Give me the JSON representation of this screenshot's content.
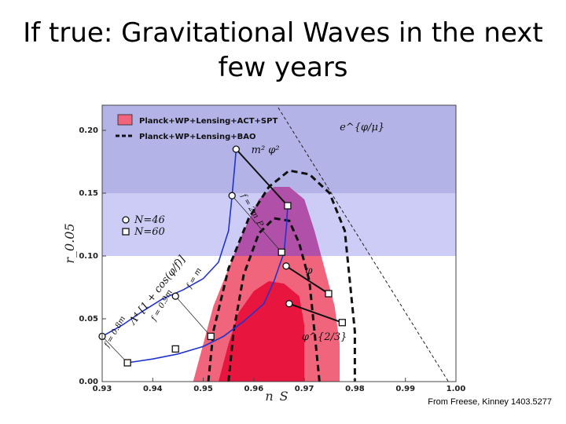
{
  "slide": {
    "title_line1": "If true: Gravitational Waves in the next",
    "title_line2": "few years",
    "credit": "From Freese, Kinney 1403.5277"
  },
  "chart_data": {
    "type": "scatter",
    "xlabel": "n_S",
    "ylabel": "r_0.05",
    "xlim": [
      0.93,
      1.0
    ],
    "ylim": [
      0.0,
      0.22
    ],
    "x_ticks": [
      "0.93",
      "0.94",
      "0.95",
      "0.96",
      "0.97",
      "0.98",
      "0.99",
      "1.00"
    ],
    "y_ticks": [
      "0.00",
      "0.05",
      "0.10",
      "0.15",
      "0.20"
    ],
    "bands": [
      {
        "y0": 0.15,
        "y1": 0.22,
        "color": "#b3b3e8"
      },
      {
        "y0": 0.1,
        "y1": 0.15,
        "color": "#ccccf6"
      }
    ],
    "legend": [
      {
        "label": "Planck+WP+Lensing+ACT+SPT",
        "kind": "fill",
        "color": "#f0647c"
      },
      {
        "label": "Planck+WP+Lensing+BAO",
        "kind": "dashed",
        "color": "#111111"
      }
    ],
    "legend2": [
      {
        "label": "N=46",
        "marker": "circle"
      },
      {
        "label": "N=60",
        "marker": "square"
      }
    ],
    "contour_outer": [
      [
        0.948,
        0.0
      ],
      [
        0.95,
        0.03
      ],
      [
        0.952,
        0.06
      ],
      [
        0.955,
        0.09
      ],
      [
        0.958,
        0.12
      ],
      [
        0.961,
        0.145
      ],
      [
        0.964,
        0.155
      ],
      [
        0.967,
        0.155
      ],
      [
        0.97,
        0.145
      ],
      [
        0.972,
        0.12
      ],
      [
        0.974,
        0.09
      ],
      [
        0.976,
        0.06
      ],
      [
        0.977,
        0.03
      ],
      [
        0.977,
        0.0
      ]
    ],
    "contour_inner": [
      [
        0.953,
        0.0
      ],
      [
        0.955,
        0.03
      ],
      [
        0.957,
        0.055
      ],
      [
        0.96,
        0.072
      ],
      [
        0.963,
        0.08
      ],
      [
        0.966,
        0.078
      ],
      [
        0.969,
        0.068
      ],
      [
        0.97,
        0.045
      ],
      [
        0.97,
        0.0
      ]
    ],
    "dashed_outer": [
      [
        0.951,
        0.0
      ],
      [
        0.952,
        0.04
      ],
      [
        0.955,
        0.09
      ],
      [
        0.959,
        0.13
      ],
      [
        0.963,
        0.155
      ],
      [
        0.967,
        0.168
      ],
      [
        0.971,
        0.165
      ],
      [
        0.975,
        0.15
      ],
      [
        0.978,
        0.12
      ],
      [
        0.979,
        0.08
      ],
      [
        0.98,
        0.04
      ],
      [
        0.98,
        0.0
      ]
    ],
    "dashed_inner": [
      [
        0.955,
        0.0
      ],
      [
        0.956,
        0.04
      ],
      [
        0.958,
        0.085
      ],
      [
        0.961,
        0.118
      ],
      [
        0.964,
        0.13
      ],
      [
        0.967,
        0.128
      ],
      [
        0.969,
        0.11
      ],
      [
        0.971,
        0.08
      ],
      [
        0.972,
        0.04
      ],
      [
        0.973,
        0.0
      ]
    ],
    "natural_inflation_curves": [
      [
        [
          0.93,
          0.036
        ],
        [
          0.934,
          0.045
        ],
        [
          0.938,
          0.056
        ],
        [
          0.942,
          0.066
        ],
        [
          0.946,
          0.073
        ],
        [
          0.95,
          0.082
        ],
        [
          0.953,
          0.095
        ],
        [
          0.955,
          0.12
        ],
        [
          0.9557,
          0.148
        ],
        [
          0.9563,
          0.175
        ],
        [
          0.9565,
          0.185
        ]
      ],
      [
        [
          0.935,
          0.015
        ],
        [
          0.94,
          0.018
        ],
        [
          0.945,
          0.022
        ],
        [
          0.95,
          0.028
        ],
        [
          0.954,
          0.036
        ],
        [
          0.958,
          0.048
        ],
        [
          0.962,
          0.062
        ],
        [
          0.964,
          0.08
        ],
        [
          0.966,
          0.103
        ],
        [
          0.9665,
          0.125
        ],
        [
          0.9667,
          0.14
        ]
      ]
    ],
    "phi2_line": [
      [
        0.9565,
        0.185
      ],
      [
        0.9667,
        0.14
      ]
    ],
    "phi_line": [
      [
        0.9664,
        0.092
      ],
      [
        0.9748,
        0.07
      ]
    ],
    "phi23_line": [
      [
        0.967,
        0.062
      ],
      [
        0.9775,
        0.047
      ]
    ],
    "exp_line": [
      [
        0.9545,
        0.285
      ],
      [
        0.9985,
        0.0
      ]
    ],
    "connectors": [
      [
        [
          0.93,
          0.036
        ],
        [
          0.935,
          0.015
        ]
      ],
      [
        [
          0.9445,
          0.068
        ],
        [
          0.9515,
          0.036
        ]
      ],
      [
        [
          0.9557,
          0.148
        ],
        [
          0.9655,
          0.103
        ]
      ]
    ],
    "points_circle": [
      [
        0.9565,
        0.185
      ],
      [
        0.9557,
        0.148
      ],
      [
        0.9445,
        0.068
      ],
      [
        0.93,
        0.036
      ],
      [
        0.9664,
        0.092
      ],
      [
        0.967,
        0.062
      ]
    ],
    "points_square": [
      [
        0.9667,
        0.14
      ],
      [
        0.9655,
        0.103
      ],
      [
        0.9515,
        0.036
      ],
      [
        0.9445,
        0.026
      ],
      [
        0.935,
        0.015
      ],
      [
        0.9748,
        0.07
      ],
      [
        0.9775,
        0.047
      ]
    ],
    "annotations": {
      "exp": "e^{φ/μ}",
      "m2phi2": "m² φ²",
      "phi": "φ",
      "phi23": "φ^{2/3}",
      "natural": "Λ⁴ [1 + cos(φ/f)]",
      "f_2mp": "f = 2m_P",
      "f_m": "f = m",
      "f_09m": "f = 0.9m",
      "f_08m": "f = 0.8m"
    },
    "colors": {
      "outer_fill": "#f0647c",
      "inner_fill": "#e8153e",
      "purple_overlap": "#b050a8",
      "curve": "#2233cc"
    }
  }
}
